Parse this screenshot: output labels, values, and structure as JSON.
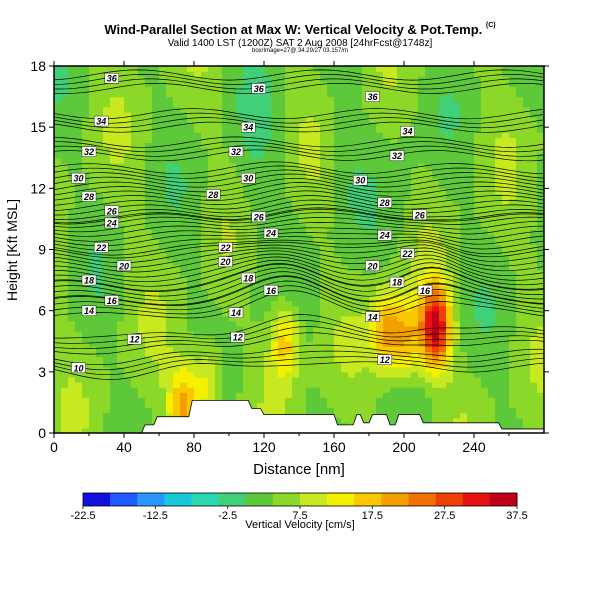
{
  "header": {
    "title": "Wind-Parallel Section at Max W: Vertical Velocity & Pot.Temp.",
    "title_tag": "(C)",
    "subtitle": "Valid 1400 LST (1200Z) SAT 2 Aug 2008 [24hrFcst@1748z]",
    "subtitle2": "box/Image=27@ 34.29/27 03.157/m"
  },
  "chart_data": {
    "type": "heatmap",
    "xlabel": "Distance [nm]",
    "ylabel": "Height [Kft MSL]",
    "xlim": [
      0,
      280
    ],
    "ylim": [
      0,
      18
    ],
    "xticks": [
      0,
      40,
      80,
      120,
      160,
      200,
      240
    ],
    "yticks": [
      0,
      3,
      6,
      9,
      12,
      15,
      18
    ],
    "colorbar": {
      "label": "Vertical Velocity [cm/s]",
      "ticks": [
        "-22.5",
        "-12.5",
        "-2.5",
        "7.5",
        "17.5",
        "27.5",
        "37.5"
      ],
      "range": [
        -22.5,
        37.5
      ],
      "colors": [
        "#1010e0",
        "#1e5aff",
        "#2a96ff",
        "#18c8d8",
        "#2ad8b0",
        "#40d078",
        "#5cc83a",
        "#8cd828",
        "#c8e820",
        "#f4f000",
        "#f8c800",
        "#f4a000",
        "#f07000",
        "#ee4000",
        "#e81010",
        "#c00018"
      ]
    },
    "updrafts": [
      {
        "x": 218,
        "y": 5.2,
        "peak": 32
      },
      {
        "x": 190,
        "y": 5.0,
        "peak": 17
      },
      {
        "x": 202,
        "y": 4.6,
        "peak": 14
      },
      {
        "x": 132,
        "y": 4.5,
        "peak": 14
      },
      {
        "x": 74,
        "y": 1.3,
        "peak": 17
      },
      {
        "x": 88,
        "y": 2.5,
        "peak": 11
      }
    ],
    "terrain_distance": [
      0,
      50,
      52,
      57,
      59,
      77,
      79,
      111,
      113,
      118,
      120,
      160,
      162,
      171,
      173,
      175,
      177,
      180,
      182,
      190,
      192,
      195,
      197,
      209,
      211,
      254,
      256,
      280
    ],
    "terrain_height": [
      0,
      0,
      0.4,
      0.4,
      0.8,
      0.8,
      1.6,
      1.6,
      1.2,
      1.2,
      0.9,
      0.9,
      0.4,
      0.4,
      0.9,
      0.9,
      0.5,
      0.5,
      0.9,
      0.9,
      0.4,
      0.4,
      0.9,
      0.9,
      0.5,
      0.5,
      0.2,
      0.2
    ],
    "theta_contours": [
      {
        "label": "10",
        "base": 3.2,
        "lx": 14,
        "ly": 3.2
      },
      {
        "label": "12",
        "base": 4.3,
        "lx": 46,
        "ly": 4.6,
        "lx2": 105,
        "ly2": 4.7,
        "lx3": 189,
        "ly3": 3.6
      },
      {
        "label": "14",
        "base": 5.9,
        "lx": 20,
        "ly": 6.0,
        "lx2": 104,
        "ly2": 5.9,
        "lx3": 182,
        "ly3": 5.7
      },
      {
        "label": "16",
        "base": 6.6,
        "lx": 33,
        "ly": 6.5,
        "lx2": 124,
        "ly2": 7.0,
        "lx3": 212,
        "ly3": 7.0
      },
      {
        "label": "18",
        "base": 7.3,
        "lx": 20,
        "ly": 7.5,
        "lx2": 111,
        "ly2": 7.6,
        "lx3": 196,
        "ly3": 7.4
      },
      {
        "label": "20",
        "base": 8.2,
        "lx": 40,
        "ly": 8.2,
        "lx2": 98,
        "ly2": 8.4,
        "lx3": 182,
        "ly3": 8.2
      },
      {
        "label": "22",
        "base": 9.0,
        "lx": 27,
        "ly": 9.1,
        "lx2": 98,
        "ly2": 9.1,
        "lx3": 202,
        "ly3": 8.8
      },
      {
        "label": "24",
        "base": 9.9,
        "lx": 33,
        "ly": 10.3,
        "lx2": 124,
        "ly2": 9.8,
        "lx3": 189,
        "ly3": 9.7
      },
      {
        "label": "26",
        "base": 10.5,
        "lx": 33,
        "ly": 10.9,
        "lx2": 117,
        "ly2": 10.6,
        "lx3": 209,
        "ly3": 10.7
      },
      {
        "label": "28",
        "base": 11.4,
        "lx": 20,
        "ly": 11.6,
        "lx2": 91,
        "ly2": 11.7,
        "lx3": 189,
        "ly3": 11.3
      },
      {
        "label": "30",
        "base": 12.3,
        "lx": 14,
        "ly": 12.5,
        "lx2": 111,
        "ly2": 12.5,
        "lx3": 175,
        "ly3": 12.4
      },
      {
        "label": "32",
        "base": 13.6,
        "lx": 20,
        "ly": 13.8,
        "lx2": 104,
        "ly2": 13.8,
        "lx3": 196,
        "ly3": 13.6
      },
      {
        "label": "34",
        "base": 15.0,
        "lx": 27,
        "ly": 15.3,
        "lx2": 111,
        "ly2": 15.0,
        "lx3": 202,
        "ly3": 14.8
      },
      {
        "label": "36",
        "base": 16.9,
        "lx": 33,
        "ly": 17.4,
        "lx2": 117,
        "ly2": 16.9,
        "lx3": 182,
        "ly3": 16.5
      }
    ]
  }
}
